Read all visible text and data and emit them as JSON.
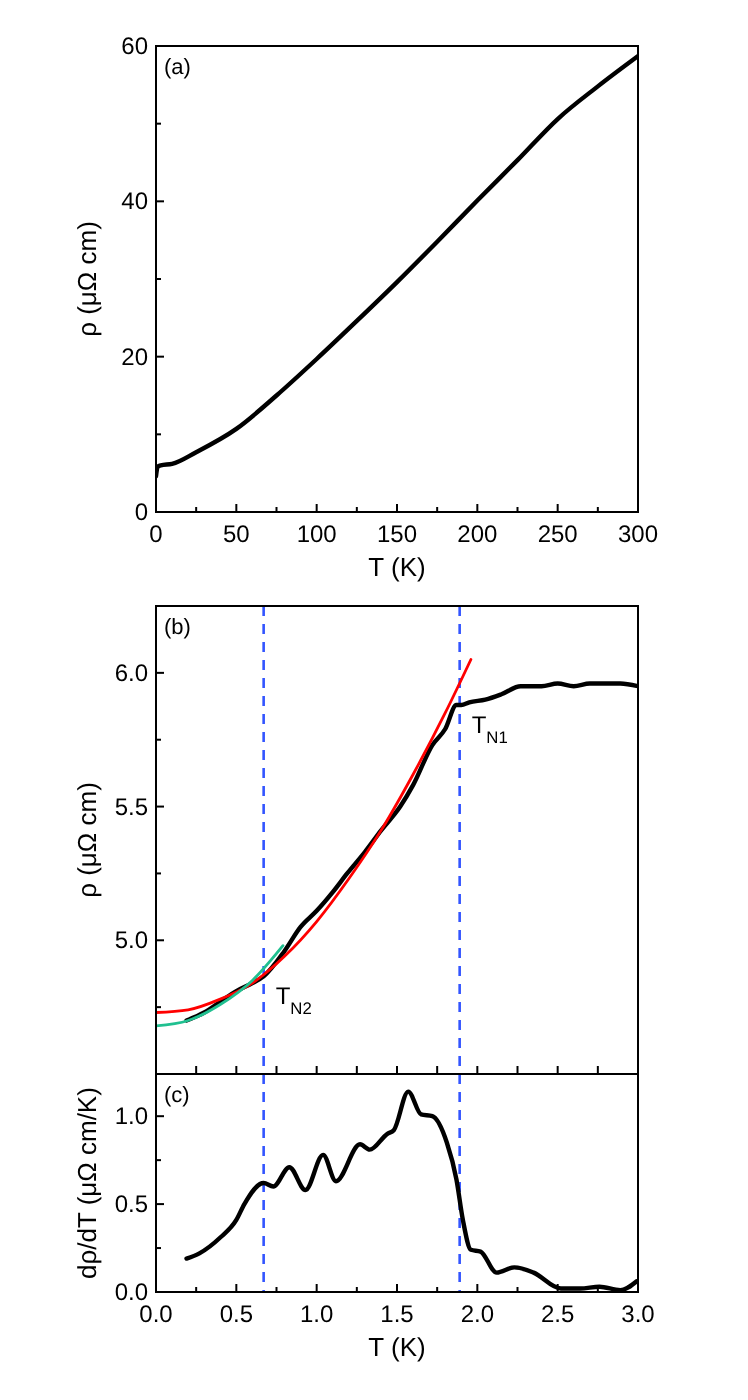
{
  "chart_data": [
    {
      "type": "line",
      "xlabel": "T (K)",
      "ylabel": "ρ (μΩ cm)",
      "annotations": [
        "(a)"
      ],
      "xlim": [
        0,
        300
      ],
      "ylim": [
        0,
        60
      ],
      "xticks": [
        0,
        {
          "value": 25,
          "label": null
        },
        50,
        {
          "value": 75,
          "label": null
        },
        100,
        {
          "value": 125,
          "label": null
        },
        150,
        {
          "value": 175,
          "label": null
        },
        200,
        {
          "value": 225,
          "label": null
        },
        250,
        {
          "value": 275,
          "label": null
        },
        300
      ],
      "yticks": [
        0,
        {
          "value": 10,
          "label": null
        },
        20,
        {
          "value": 30,
          "label": null
        },
        40,
        {
          "value": 50,
          "label": null
        },
        60
      ],
      "series": [
        {
          "color": "#000000",
          "x": [
            0,
            1,
            3,
            10,
            25,
            50,
            75,
            100,
            125,
            150,
            175,
            200,
            225,
            250,
            275,
            300
          ],
          "values": [
            4.6,
            5.8,
            6,
            6.2,
            7.7,
            10.7,
            15,
            19.7,
            24.6,
            29.6,
            34.8,
            40.1,
            45.3,
            50.6,
            54.8,
            58.7
          ]
        }
      ]
    },
    {
      "type": "line",
      "ylabel": "ρ (μΩ cm)",
      "annotations": [
        "(b)"
      ],
      "xlim": [
        0,
        3
      ],
      "ylim": [
        4.5,
        6.25
      ],
      "tick_labels": "y",
      "xticks": [
        0,
        0.25,
        0.5,
        0.75,
        1,
        1.25,
        1.5,
        1.75,
        2,
        2.25,
        2.5,
        2.75,
        3
      ],
      "yticks": [
        {
          "value": 4.75,
          "label": null
        },
        {
          "value": 5,
          "label": "5.0"
        },
        {
          "value": 5.25,
          "label": null
        },
        5.5,
        {
          "value": 5.75,
          "label": null
        },
        {
          "value": 6,
          "label": "6.0"
        }
      ],
      "series": [
        {
          "color": "#000000",
          "x": [
            0.19,
            0.3,
            0.4,
            0.5,
            0.6,
            0.67,
            0.8,
            0.9,
            1.0,
            1.1,
            1.19,
            1.3,
            1.4,
            1.52,
            1.6,
            1.72,
            1.8,
            1.87,
            1.9,
            1.95,
            2.05,
            2.15,
            2.27,
            2.4,
            2.5,
            2.6,
            2.7,
            2.8,
            2.89,
            3.0
          ],
          "values": [
            4.7,
            4.73,
            4.77,
            4.81,
            4.84,
            4.865,
            4.96,
            5.05,
            5.11,
            5.18,
            5.25,
            5.33,
            5.41,
            5.5,
            5.58,
            5.73,
            5.79,
            5.88,
            5.88,
            5.89,
            5.9,
            5.92,
            5.95,
            5.95,
            5.96,
            5.95,
            5.96,
            5.96,
            5.96,
            5.95
          ]
        },
        {
          "color": "#ff0000",
          "x": [
            0,
            0.2,
            0.4,
            0.6,
            0.8,
            1.0,
            1.2,
            1.4,
            1.6,
            1.8,
            1.96
          ],
          "values": [
            4.73,
            4.74,
            4.78,
            4.84,
            4.94,
            5.07,
            5.23,
            5.41,
            5.62,
            5.85,
            6.05
          ]
        },
        {
          "color": "#20c090",
          "x": [
            0,
            0.2,
            0.4,
            0.6,
            0.79
          ],
          "values": [
            4.68,
            4.7,
            4.76,
            4.85,
            4.98
          ]
        }
      ],
      "ref_lines": [
        {
          "axis": "x",
          "value": 0.67,
          "label": "T$_{N2}$",
          "color": "#3355ff",
          "line_style": "dashed"
        },
        {
          "axis": "x",
          "value": 1.89,
          "label": "T$_{N1}$",
          "color": "#3355ff",
          "line_style": "dashed"
        }
      ]
    },
    {
      "type": "line",
      "xlabel": "T (K)",
      "ylabel": "dρ/dT (μΩ cm/K)",
      "annotations": [
        "(c)"
      ],
      "xlim": [
        0,
        3
      ],
      "ylim": [
        0,
        1.24
      ],
      "xticks": [
        {
          "value": 0,
          "label": "0.0"
        },
        {
          "value": 0.25,
          "label": null
        },
        {
          "value": 0.5,
          "label": "0.5"
        },
        {
          "value": 0.75,
          "label": null
        },
        {
          "value": 1,
          "label": "1.0"
        },
        {
          "value": 1.25,
          "label": null
        },
        {
          "value": 1.5,
          "label": "1.5"
        },
        {
          "value": 1.75,
          "label": null
        },
        {
          "value": 2,
          "label": "2.0"
        },
        {
          "value": 2.25,
          "label": null
        },
        {
          "value": 2.5,
          "label": "2.5"
        },
        {
          "value": 2.75,
          "label": null
        },
        {
          "value": 3,
          "label": "3.0"
        }
      ],
      "yticks": [
        {
          "value": 0,
          "label": "0.0"
        },
        {
          "value": 0.25,
          "label": null
        },
        {
          "value": 0.5,
          "label": "0.5"
        },
        {
          "value": 0.75,
          "label": null
        },
        {
          "value": 1,
          "label": "1.0"
        }
      ],
      "series": [
        {
          "color": "#000000",
          "x": [
            0.19,
            0.27,
            0.4,
            0.5,
            0.55,
            0.67,
            0.73,
            0.83,
            0.93,
            1.04,
            1.12,
            1.27,
            1.33,
            1.44,
            1.48,
            1.57,
            1.65,
            1.72,
            1.81,
            1.87,
            1.91,
            1.96,
            2.02,
            2.12,
            2.23,
            2.35,
            2.52,
            2.64,
            2.76,
            2.89,
            2.99
          ],
          "values": [
            0.19,
            0.22,
            0.31,
            0.41,
            0.5,
            0.62,
            0.6,
            0.71,
            0.58,
            0.78,
            0.63,
            0.84,
            0.81,
            0.9,
            0.92,
            1.14,
            1.01,
            1.0,
            0.85,
            0.64,
            0.41,
            0.24,
            0.23,
            0.11,
            0.14,
            0.11,
            0.02,
            0.02,
            0.03,
            0.01,
            0.06
          ]
        }
      ],
      "ref_lines": [
        {
          "axis": "x",
          "value": 0.67,
          "color": "#3355ff",
          "line_style": "dashed"
        },
        {
          "axis": "x",
          "value": 1.89,
          "color": "#3355ff",
          "line_style": "dashed"
        }
      ]
    }
  ]
}
